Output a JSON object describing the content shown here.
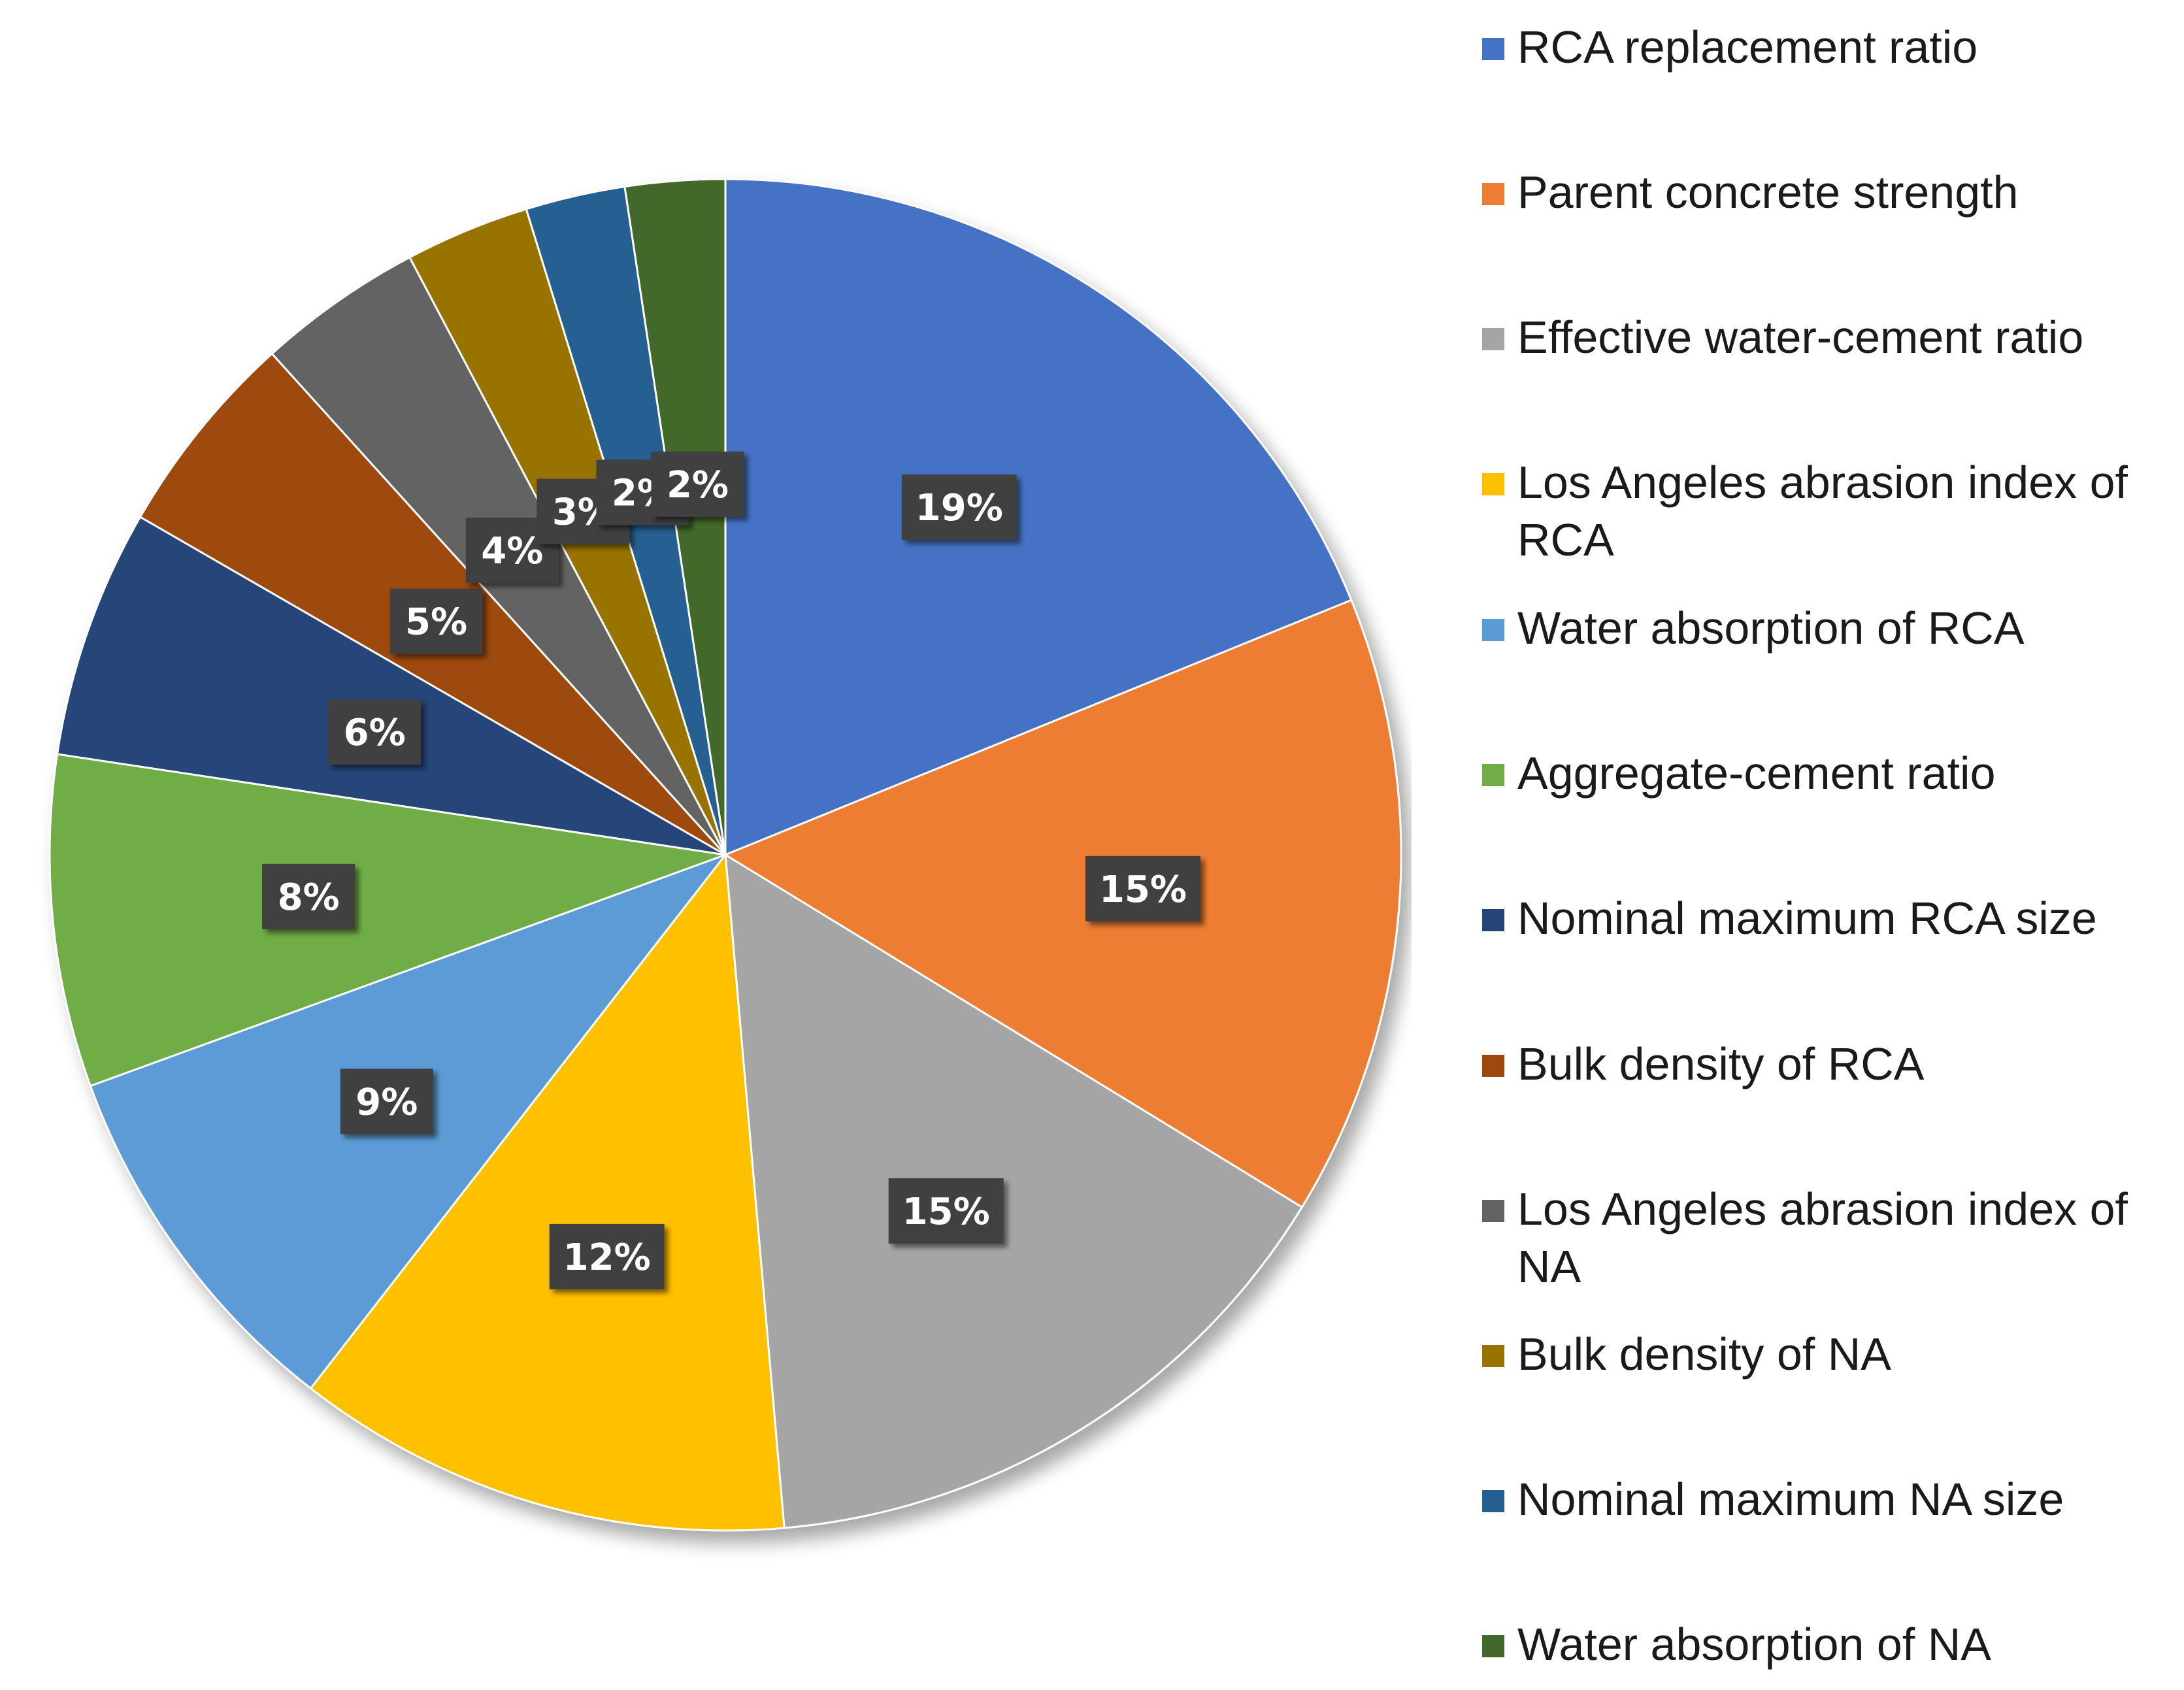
{
  "chart_data": {
    "type": "pie",
    "title": "",
    "start_angle_deg": 0,
    "direction": "clockwise",
    "slices": [
      {
        "label": "RCA replacement ratio",
        "value": 19,
        "display": "19%",
        "color": "#4472C4"
      },
      {
        "label": "Parent concrete strength",
        "value": 15,
        "display": "15%",
        "color": "#ED7D31"
      },
      {
        "label": "Effective water-cement ratio",
        "value": 15,
        "display": "15%",
        "color": "#A5A5A5"
      },
      {
        "label": "Los Angeles abrasion index of RCA",
        "value": 12,
        "display": "12%",
        "color": "#FFC000"
      },
      {
        "label": "Water absorption of RCA",
        "value": 9,
        "display": "9%",
        "color": "#5B9BD5"
      },
      {
        "label": "Aggregate-cement ratio",
        "value": 8,
        "display": "8%",
        "color": "#70AD47"
      },
      {
        "label": "Nominal maximum RCA size",
        "value": 6,
        "display": "6%",
        "color": "#264478"
      },
      {
        "label": "Bulk density of RCA",
        "value": 5,
        "display": "5%",
        "color": "#9E480E"
      },
      {
        "label": "Los Angeles abrasion index of NA",
        "value": 4,
        "display": "4%",
        "color": "#636363"
      },
      {
        "label": "Bulk density of NA",
        "value": 3,
        "display": "3%",
        "color": "#997300"
      },
      {
        "label": "Nominal maximum NA size",
        "value": 2.4,
        "display": "2%",
        "color": "#255E91"
      },
      {
        "label": "Water absorption of NA",
        "value": 2.4,
        "display": "2%",
        "color": "#43682B"
      }
    ],
    "legend_position": "right"
  }
}
